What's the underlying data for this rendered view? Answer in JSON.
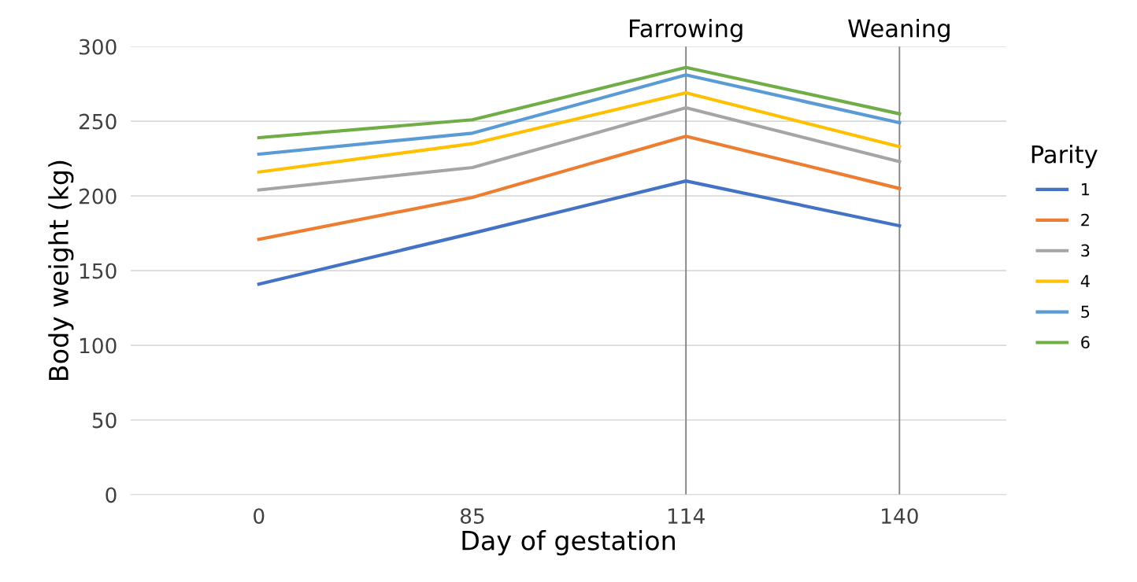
{
  "chart_data": {
    "type": "line",
    "xlabel": "Day of gestation",
    "ylabel": "Body weight (kg)",
    "legend_title": "Parity",
    "categories": [
      "0",
      "85",
      "114",
      "140"
    ],
    "series": [
      {
        "name": "1",
        "color": "#4472c4",
        "values": [
          141,
          175,
          210,
          180
        ]
      },
      {
        "name": "2",
        "color": "#ed7d31",
        "values": [
          171,
          199,
          240,
          205
        ]
      },
      {
        "name": "3",
        "color": "#a5a5a5",
        "values": [
          204,
          219,
          259,
          223
        ]
      },
      {
        "name": "4",
        "color": "#ffc000",
        "values": [
          216,
          235,
          269,
          233
        ]
      },
      {
        "name": "5",
        "color": "#5b9bd5",
        "values": [
          228,
          242,
          281,
          249
        ]
      },
      {
        "name": "6",
        "color": "#70ad47",
        "values": [
          239,
          251,
          286,
          255
        ]
      }
    ],
    "ylim": [
      0,
      300
    ],
    "yticks": [
      0,
      50,
      100,
      150,
      200,
      250,
      300
    ],
    "grid": "y",
    "legend": "right",
    "marker": "none",
    "line_style": "solid",
    "ref_lines": [
      {
        "axis": "x",
        "value": "114",
        "label": "Farrowing",
        "color": "#808080"
      },
      {
        "axis": "x",
        "value": "140",
        "label": "Weaning",
        "color": "#808080"
      }
    ]
  }
}
